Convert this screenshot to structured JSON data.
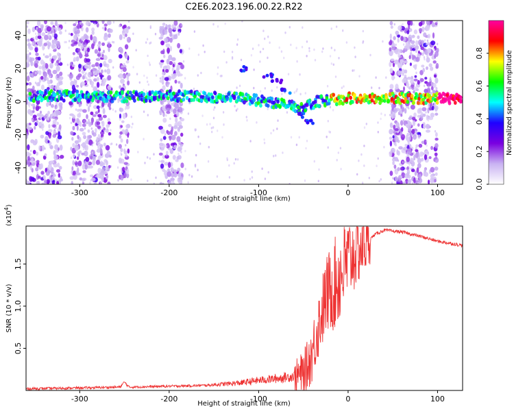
{
  "title": "C2E6.2023.196.00.22.R22",
  "chart_data": [
    {
      "type": "heatmap",
      "xlabel": "Height of straight line (km)",
      "ylabel": "Frequency (Hz)",
      "xlim": [
        -360,
        128
      ],
      "ylim": [
        -50,
        49
      ],
      "xticks": [
        -300,
        -200,
        -100,
        0,
        100
      ],
      "yticks": [
        -40,
        -20,
        0,
        20,
        40
      ],
      "colorbar": {
        "label": "Normalized spectral amplitude",
        "range": [
          0,
          1
        ],
        "ticks": [
          0.0,
          0.2,
          0.4,
          0.6,
          0.8
        ],
        "colors": [
          "#ffffff",
          "#c9b3f2",
          "#7a00e0",
          "#2000ff",
          "#00ffff",
          "#00ff00",
          "#ffff00",
          "#ff0000",
          "#ff00a0"
        ]
      },
      "ridge": {
        "x": [
          -355,
          -330,
          -300,
          -270,
          -240,
          -200,
          -160,
          -120,
          -90,
          -70,
          -55,
          -45,
          -35,
          -20,
          0,
          40,
          80,
          128
        ],
        "y": [
          3,
          4,
          3,
          3,
          3,
          3.5,
          3,
          2,
          0,
          -2,
          -4,
          -2,
          0,
          1,
          2,
          2,
          2,
          2
        ]
      },
      "noise_bands_x": [
        [
          -360,
          -320
        ],
        [
          -310,
          -265
        ],
        [
          -255,
          -245
        ],
        [
          -210,
          -185
        ],
        [
          47,
          100
        ]
      ]
    },
    {
      "type": "line",
      "xlabel": "Height of straight line (km)",
      "ylabel": "SNR (10 * v/v)",
      "exponent_label": "(x10",
      "exponent_power": "4",
      "exponent_close": ")",
      "xlim": [
        -360,
        128
      ],
      "ylim": [
        0,
        1.95
      ],
      "xticks": [
        -300,
        -200,
        -100,
        0,
        100
      ],
      "yticks": [
        0.5,
        1.0,
        1.5
      ],
      "ytick_labels": [
        "0.5",
        "1.0",
        "1.5"
      ],
      "color": "#ee3333",
      "series": [
        {
          "x": [
            -360,
            -300,
            -255,
            -250,
            -245,
            -200,
            -160,
            -120,
            -100,
            -80,
            -60,
            -50,
            -45,
            -40,
            -35,
            -30,
            -25,
            -20,
            -15,
            -10,
            -5,
            0,
            10,
            20,
            30,
            40,
            60,
            80,
            100,
            128
          ],
          "y": [
            0.02,
            0.03,
            0.04,
            0.1,
            0.04,
            0.05,
            0.06,
            0.09,
            0.12,
            0.14,
            0.17,
            0.2,
            0.3,
            0.45,
            0.7,
            0.9,
            1.1,
            1.2,
            1.25,
            1.35,
            1.45,
            1.55,
            1.65,
            1.75,
            1.85,
            1.9,
            1.88,
            1.83,
            1.77,
            1.72
          ]
        }
      ]
    }
  ]
}
